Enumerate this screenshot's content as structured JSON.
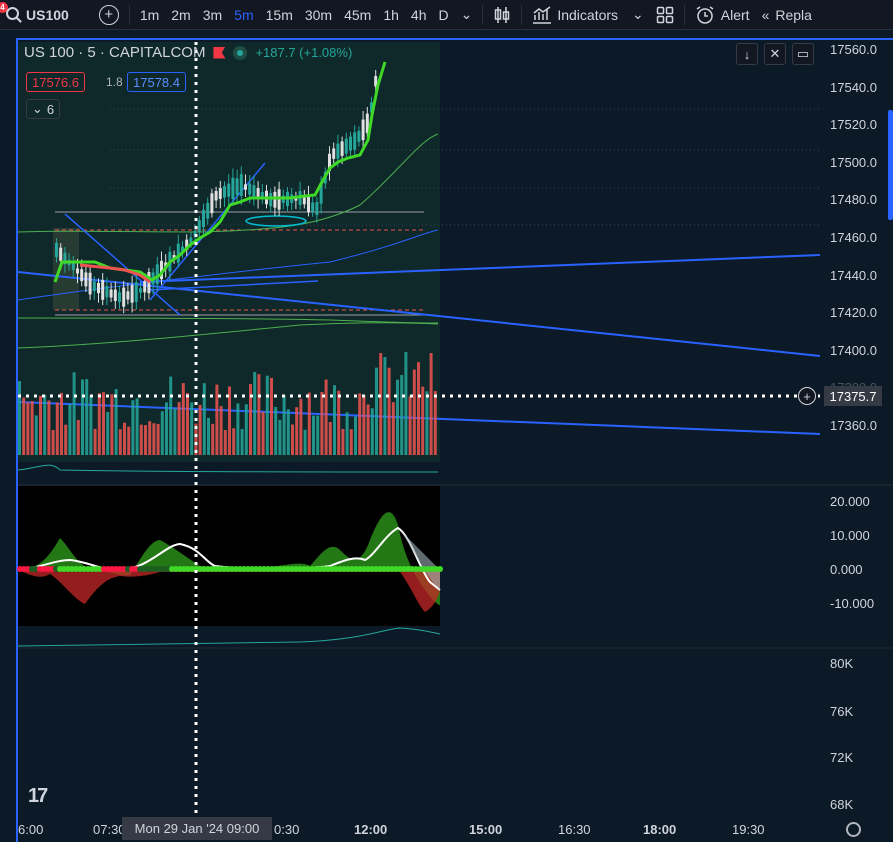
{
  "toolbar": {
    "symbol": "US100",
    "badge": "4",
    "intervals": [
      "1m",
      "2m",
      "3m",
      "5m",
      "15m",
      "30m",
      "45m",
      "1h",
      "4h",
      "D"
    ],
    "active_interval": "5m",
    "indicators_label": "Indicators",
    "alert_label": "Alert",
    "replay_label": "Repla"
  },
  "legend": {
    "title": "US 100 · 5 · CAPITALCOM",
    "change": "+187.7 (+1.08%)",
    "sell_price": "17576.6",
    "spread": "1.8",
    "buy_price": "17578.4",
    "indicator_count": "6"
  },
  "price_axis": {
    "labels": [
      "17560.0",
      "17540.0",
      "17520.0",
      "17500.0",
      "17480.0",
      "17460.0",
      "17440.0",
      "17420.0",
      "17400.0",
      "17380.0",
      "17360.0"
    ],
    "crosshair_price": "17375.7"
  },
  "oscillator_axis": {
    "labels": [
      "20.000",
      "10.000",
      "0.000",
      "-10.000"
    ]
  },
  "volume_axis": {
    "labels": [
      "80K",
      "76K",
      "72K",
      "68K"
    ]
  },
  "time_axis": {
    "labels": [
      "6:00",
      "07:30",
      "0:30",
      "12:00",
      "15:00",
      "16:30",
      "18:00",
      "19:30"
    ],
    "crosshair_time": "Mon 29 Jan '24   09:00"
  },
  "colors": {
    "up": "#26a69a",
    "down": "#ef5350",
    "accent": "#2962ff",
    "ma_green": "#4caf50",
    "bright_green": "#3fd826"
  }
}
